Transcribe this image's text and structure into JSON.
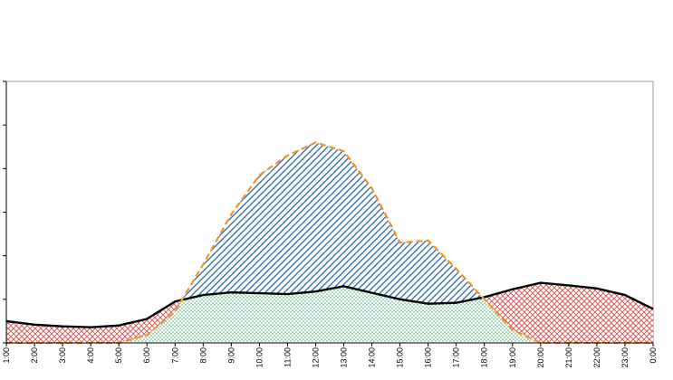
{
  "chart_data": {
    "type": "area",
    "title": "",
    "xlabel": "",
    "ylabel": "",
    "categories": [
      "1:00",
      "2:00",
      "3:00",
      "4:00",
      "5:00",
      "6:00",
      "7:00",
      "8:00",
      "9:00",
      "10:00",
      "11:00",
      "12:00",
      "13:00",
      "14:00",
      "15:00",
      "16:00",
      "17:00",
      "18:00",
      "19:00",
      "20:00",
      "21:00",
      "22:00",
      "23:00",
      "0:00"
    ],
    "y_ticks": 6,
    "ylim": [
      0,
      6
    ],
    "grid": false,
    "legend": "none",
    "series": [
      {
        "kind": "solid-line",
        "color": "#000000",
        "values": [
          0.5,
          0.42,
          0.38,
          0.36,
          0.4,
          0.55,
          0.95,
          1.1,
          1.16,
          1.14,
          1.12,
          1.18,
          1.3,
          1.15,
          1.0,
          0.9,
          0.92,
          1.05,
          1.23,
          1.38,
          1.32,
          1.25,
          1.1,
          0.78
        ]
      },
      {
        "kind": "dashed-line",
        "color": "#f0942c",
        "values": [
          0.0,
          0.0,
          0.0,
          0.0,
          0.0,
          0.18,
          0.72,
          1.8,
          2.95,
          3.85,
          4.3,
          4.6,
          4.4,
          3.55,
          2.3,
          2.35,
          1.7,
          1.0,
          0.3,
          0.0,
          0.0,
          0.0,
          0.0,
          0.0
        ]
      }
    ],
    "fills": {
      "surplus_hatch_color": "#1a5fa8",
      "deficit_hatch_color": "#d94f4f",
      "overlap_dot_color": "#3fb56e"
    }
  }
}
